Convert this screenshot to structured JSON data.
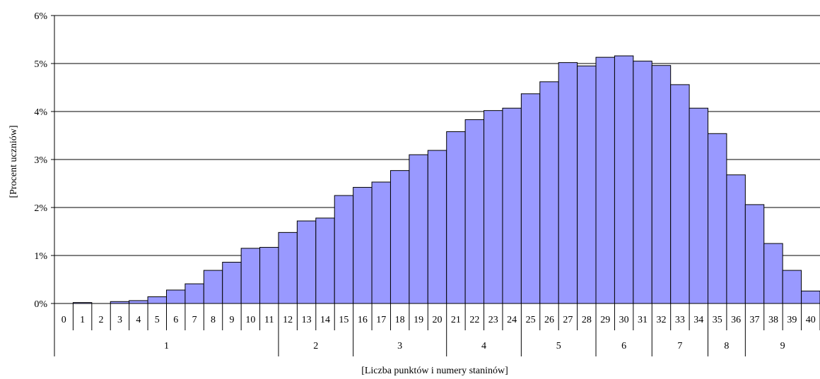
{
  "chart_data": {
    "type": "bar",
    "ylabel": "[Procent uczniów]",
    "xlabel": "[Liczba punktów i numery staninów]",
    "ylim": [
      0,
      6
    ],
    "ytick_labels": [
      "0%",
      "1%",
      "2%",
      "3%",
      "4%",
      "5%",
      "6%"
    ],
    "grid": true,
    "bar_color": "#9999ff",
    "categories": [
      "0",
      "1",
      "2",
      "3",
      "4",
      "5",
      "6",
      "7",
      "8",
      "9",
      "10",
      "11",
      "12",
      "13",
      "14",
      "15",
      "16",
      "17",
      "18",
      "19",
      "20",
      "21",
      "22",
      "23",
      "24",
      "25",
      "26",
      "27",
      "28",
      "29",
      "30",
      "31",
      "32",
      "33",
      "34",
      "35",
      "36",
      "37",
      "38",
      "39",
      "40"
    ],
    "values": [
      0,
      0.02,
      0,
      0.04,
      0.06,
      0.14,
      0.28,
      0.41,
      0.69,
      0.86,
      1.15,
      1.17,
      1.48,
      1.72,
      1.78,
      2.25,
      2.42,
      2.53,
      2.77,
      3.1,
      3.19,
      3.58,
      3.83,
      4.02,
      4.07,
      4.37,
      4.62,
      5.02,
      4.95,
      5.13,
      5.16,
      5.05,
      4.96,
      4.56,
      4.07,
      3.54,
      2.68,
      2.06,
      1.25,
      0.69,
      0.26
    ],
    "stanines": [
      {
        "label": "1",
        "from": 0,
        "to": 11
      },
      {
        "label": "2",
        "from": 12,
        "to": 15
      },
      {
        "label": "3",
        "from": 16,
        "to": 20
      },
      {
        "label": "4",
        "from": 21,
        "to": 24
      },
      {
        "label": "5",
        "from": 25,
        "to": 28
      },
      {
        "label": "6",
        "from": 29,
        "to": 31
      },
      {
        "label": "7",
        "from": 32,
        "to": 34
      },
      {
        "label": "8",
        "from": 35,
        "to": 36
      },
      {
        "label": "9",
        "from": 37,
        "to": 40
      }
    ]
  }
}
